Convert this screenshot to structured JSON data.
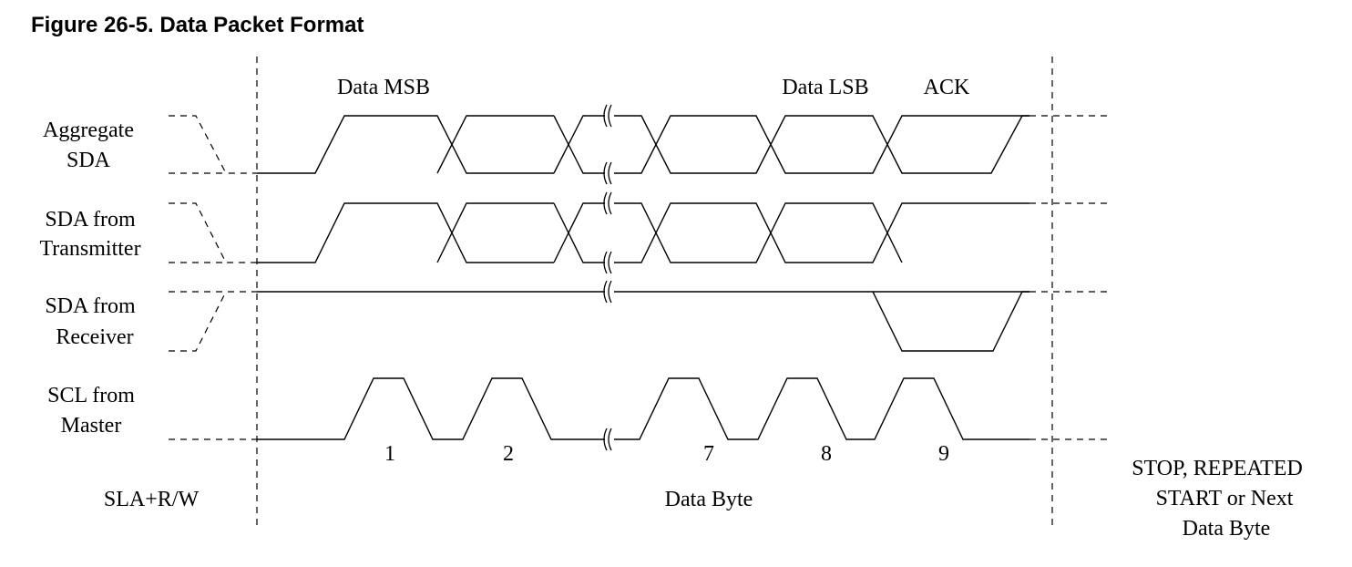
{
  "figure": {
    "title": "Figure 26-5.  Data Packet Format"
  },
  "headers": {
    "data_msb": "Data MSB",
    "data_lsb": "Data LSB",
    "ack": "ACK"
  },
  "signals": {
    "aggregate_sda": [
      "Aggregate",
      "SDA"
    ],
    "sda_transmitter": [
      "SDA from",
      "Transmitter"
    ],
    "sda_receiver": [
      "SDA from",
      "Receiver"
    ],
    "scl_master": [
      "SCL from",
      "Master"
    ]
  },
  "clock_numbers": [
    "1",
    "2",
    "7",
    "8",
    "9"
  ],
  "phases": {
    "left": "SLA+R/W",
    "middle": "Data Byte",
    "right": [
      "STOP, REPEATED",
      "START or Next",
      "Data Byte"
    ]
  }
}
